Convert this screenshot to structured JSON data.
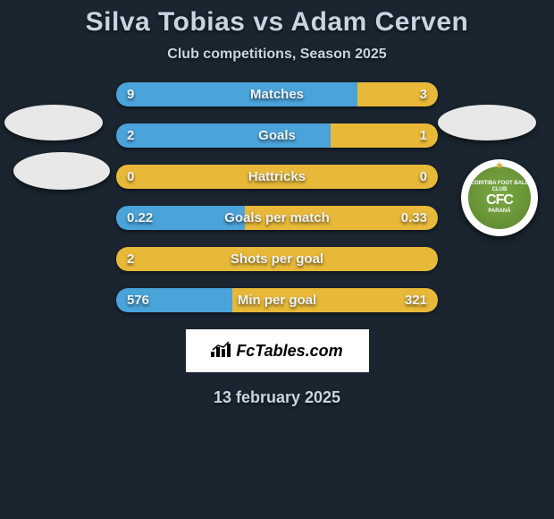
{
  "title": "Silva Tobias vs Adam Cerven",
  "subtitle": "Club competitions, Season 2025",
  "date": "13 february 2025",
  "fctables_label": "FcTables.com",
  "colors": {
    "background": "#1a2530",
    "text": "#c8d4df",
    "player1_bar": "#4aa3d9",
    "player2_bar": "#e8b938",
    "neutral_bar": "#e8b938",
    "badge_bg": "#e8e8e8",
    "logo_bg": "#ffffff",
    "logo_green": "#6a9638"
  },
  "stats": [
    {
      "label": "Matches",
      "left_value": "9",
      "right_value": "3",
      "left_pct": 75,
      "right_pct": 25,
      "left_color": "#4aa3d9",
      "right_color": "#e8b938"
    },
    {
      "label": "Goals",
      "left_value": "2",
      "right_value": "1",
      "left_pct": 66.7,
      "right_pct": 33.3,
      "left_color": "#4aa3d9",
      "right_color": "#e8b938"
    },
    {
      "label": "Hattricks",
      "left_value": "0",
      "right_value": "0",
      "full": true,
      "full_color": "#e8b938"
    },
    {
      "label": "Goals per match",
      "left_value": "0.22",
      "right_value": "0.33",
      "left_pct": 40,
      "right_pct": 60,
      "left_color": "#4aa3d9",
      "right_color": "#e8b938"
    },
    {
      "label": "Shots per goal",
      "left_value": "2",
      "right_value": "",
      "full": true,
      "full_color": "#e8b938"
    },
    {
      "label": "Min per goal",
      "left_value": "576",
      "right_value": "321",
      "left_pct": 36,
      "right_pct": 64,
      "left_color": "#4aa3d9",
      "right_color": "#e8b938"
    }
  ],
  "logo": {
    "top_text": "CORITIBA FOOT BALL CLUB",
    "center": "CFC",
    "bottom_text": "PARANÁ"
  }
}
